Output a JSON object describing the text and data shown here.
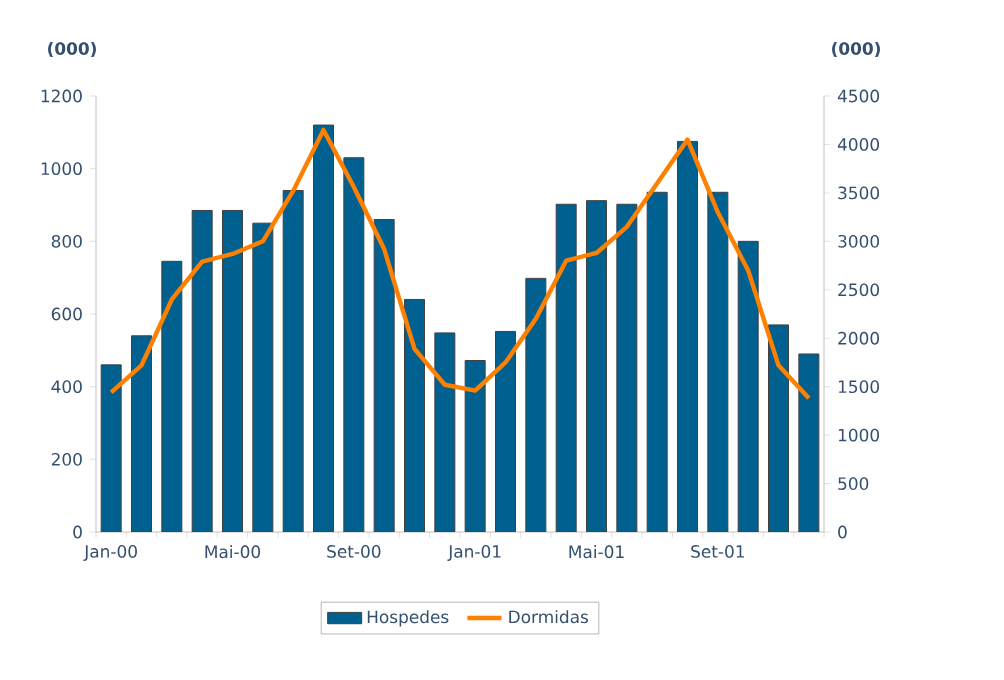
{
  "chart_data": {
    "type": "bar",
    "categories": [
      "Jan-00",
      null,
      null,
      null,
      "Mai-00",
      null,
      null,
      null,
      "Set-00",
      null,
      null,
      null,
      "Jan-01",
      null,
      null,
      null,
      "Mai-01",
      null,
      null,
      null,
      "Set-01",
      null,
      null,
      null
    ],
    "series": [
      {
        "name": "Hospedes",
        "color": "#00608f",
        "values": [
          460,
          540,
          745,
          885,
          885,
          850,
          940,
          1120,
          1030,
          860,
          640,
          548,
          472,
          552,
          698,
          902,
          912,
          902,
          935,
          1075,
          935,
          800,
          570,
          490
        ]
      },
      {
        "name": "Dormidas",
        "type": "line",
        "axis": "y2",
        "color": "#ff8000",
        "values": [
          1440,
          1720,
          2400,
          2790,
          2870,
          3000,
          3520,
          4150,
          3560,
          2920,
          1890,
          1520,
          1460,
          1750,
          2200,
          2800,
          2880,
          3150,
          3600,
          4050,
          3300,
          2700,
          1720,
          1380
        ]
      }
    ],
    "ylabel": "(000)",
    "y2label": "(000)",
    "ylim": [
      0,
      1200
    ],
    "yticks": [
      0,
      200,
      400,
      600,
      800,
      1000,
      1200
    ],
    "y2lim": [
      0,
      4500
    ],
    "y2ticks": [
      0,
      500,
      1000,
      1500,
      2000,
      2500,
      3000,
      3500,
      4000,
      4500
    ],
    "legend": "bottom"
  }
}
